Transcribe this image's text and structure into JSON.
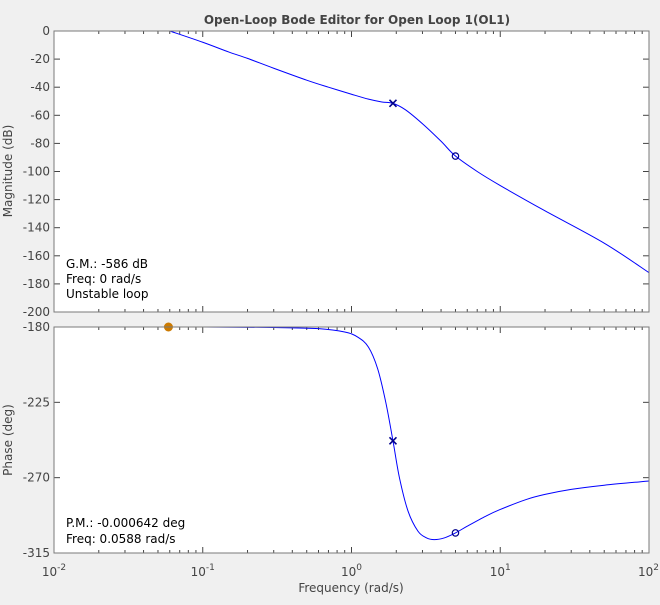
{
  "window": {
    "title": "Open-Loop Bode Editor for Open Loop 1(OL1)"
  },
  "colors": {
    "curve": "#0000ff",
    "marker": "#00008b",
    "margin_line": "#d4a017",
    "margin_dot": "#cc7a00",
    "grid": "#b0b0b0"
  },
  "chart_data": [
    {
      "type": "line",
      "panel": "magnitude",
      "title": "Open-Loop Bode Editor for Open Loop 1(OL1)",
      "ylabel": "Magnitude (dB)",
      "xscale": "log",
      "xlim": [
        0.01,
        100
      ],
      "ylim": [
        -200,
        0
      ],
      "yticks": [
        0,
        -20,
        -40,
        -60,
        -80,
        -100,
        -120,
        -140,
        -160,
        -180,
        -200
      ],
      "grid": false,
      "series": [
        {
          "x": [
            0.06,
            0.1,
            0.15,
            0.2,
            0.3,
            0.5,
            0.7,
            1.0,
            1.3,
            1.6,
            1.9,
            2.3,
            3.0,
            4.0,
            5.0,
            7.0,
            10,
            20,
            50,
            100
          ],
          "y": [
            0,
            -8,
            -15,
            -19.5,
            -26.5,
            -35,
            -40,
            -45,
            -48.5,
            -50.5,
            -51.5,
            -56,
            -66,
            -78.5,
            -89,
            -100,
            -110,
            -128,
            -151,
            -172
          ]
        }
      ],
      "markers": [
        {
          "symbol": "pole",
          "x": 1.9,
          "y": -51.5
        },
        {
          "symbol": "zero",
          "x": 5.0,
          "y": -89
        }
      ],
      "annotations": [
        "G.M.: -586 dB",
        "Freq: 0 rad/s",
        "Unstable loop"
      ]
    },
    {
      "type": "line",
      "panel": "phase",
      "xlabel": "Frequency (rad/s)",
      "ylabel": "Phase (deg)",
      "xscale": "log",
      "xlim": [
        0.01,
        100
      ],
      "xticks": [
        0.01,
        0.1,
        1,
        10,
        100
      ],
      "xtick_labels": [
        {
          "base": "10",
          "exp": "-2"
        },
        {
          "base": "10",
          "exp": "-1"
        },
        {
          "base": "10",
          "exp": "0"
        },
        {
          "base": "10",
          "exp": "1"
        },
        {
          "base": "10",
          "exp": "2"
        }
      ],
      "ylim": [
        -315,
        -180
      ],
      "yticks": [
        -180,
        -225,
        -270,
        -315
      ],
      "grid": false,
      "series": [
        {
          "x": [
            0.01,
            0.1,
            0.3,
            0.6,
            0.9,
            1.1,
            1.3,
            1.5,
            1.7,
            1.9,
            2.1,
            2.4,
            2.8,
            3.2,
            3.6,
            4.2,
            5.0,
            6.0,
            8.0,
            10,
            15,
            20,
            30,
            50,
            100
          ],
          "y": [
            -180,
            -180,
            -180.3,
            -181,
            -183,
            -186,
            -192,
            -205,
            -225,
            -248,
            -270,
            -290,
            -302,
            -306,
            -307,
            -306,
            -303,
            -299,
            -293,
            -289,
            -283,
            -280,
            -277,
            -274.5,
            -272
          ]
        }
      ],
      "reference_line": -180,
      "markers": [
        {
          "symbol": "pole",
          "x": 1.9,
          "y": -248
        },
        {
          "symbol": "zero",
          "x": 5.0,
          "y": -303
        },
        {
          "symbol": "margin",
          "x": 0.0588,
          "y": -180
        }
      ],
      "annotations": [
        "P.M.: -0.000642 deg",
        "Freq: 0.0588 rad/s"
      ]
    }
  ]
}
